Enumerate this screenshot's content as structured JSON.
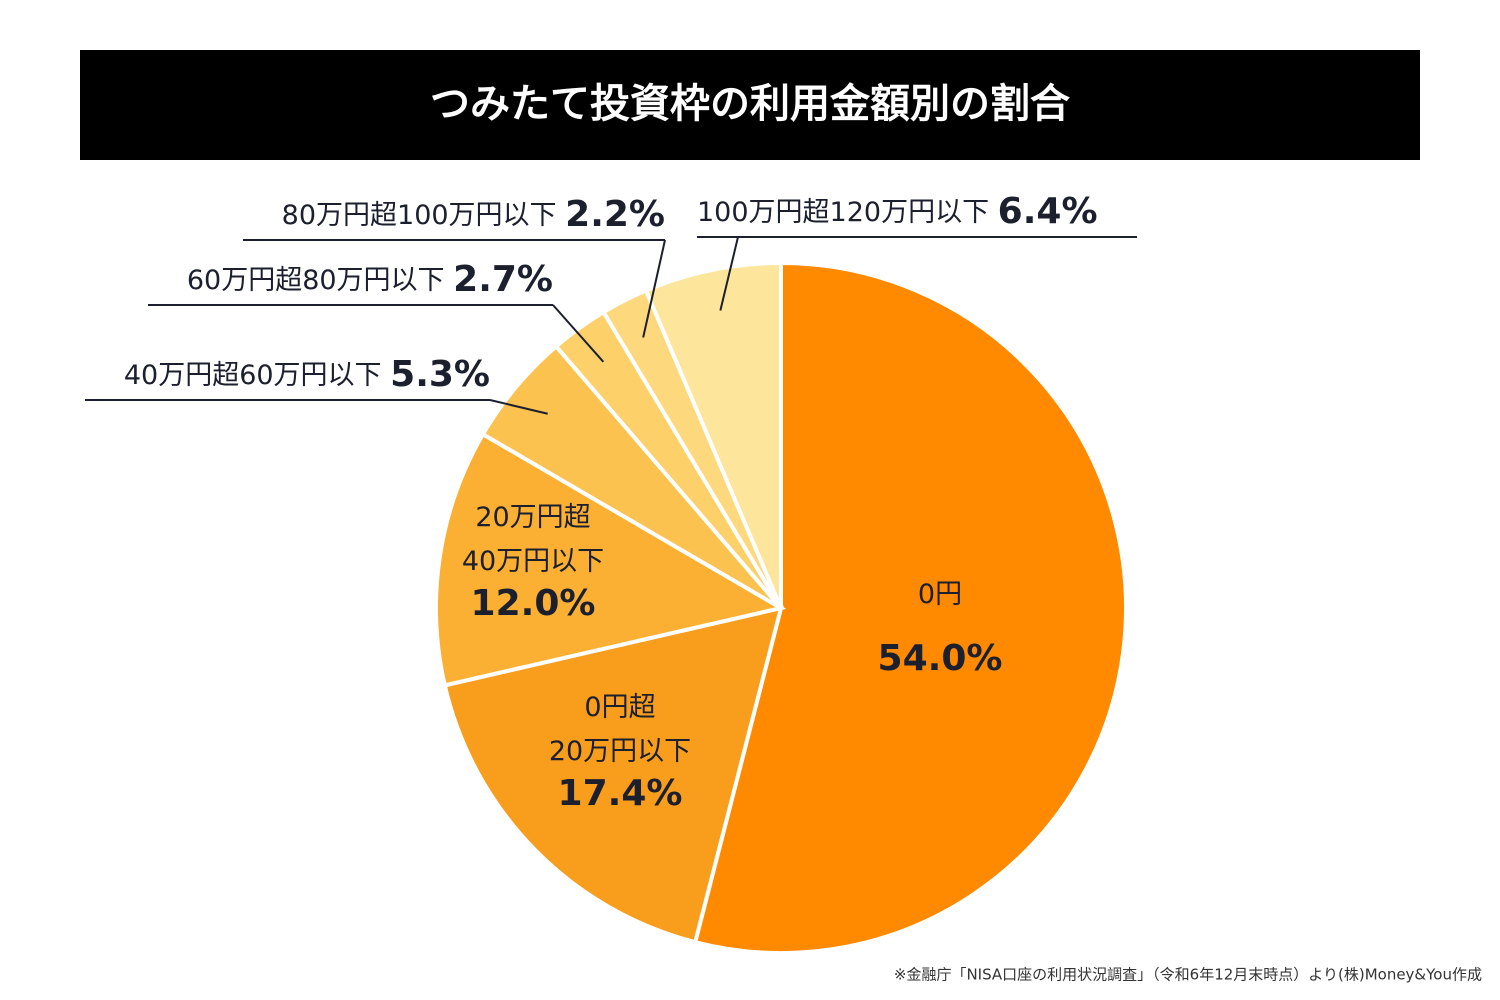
{
  "chart_data": {
    "type": "pie",
    "title": "つみたて投資枠の利用金額別の割合",
    "categories": [
      "0円",
      "0円超20万円以下",
      "20万円超40万円以下",
      "40万円超60万円以下",
      "60万円超80万円以下",
      "80万円超100万円以下",
      "100万円超120万円以下"
    ],
    "values": [
      54.0,
      17.4,
      12.0,
      5.3,
      2.7,
      2.2,
      6.4
    ],
    "value_labels": [
      "54.0%",
      "17.4%",
      "12.0%",
      "5.3%",
      "2.7%",
      "2.2%",
      "6.4%"
    ],
    "colors": [
      "#ff8a00",
      "#f99e1c",
      "#fbb034",
      "#fcc24f",
      "#fdd06a",
      "#fdd87c",
      "#fde59b"
    ],
    "source": "※金融庁「NISA口座の利用状況調査」（令和6年12月末時点）より(株)Money&You作成"
  }
}
